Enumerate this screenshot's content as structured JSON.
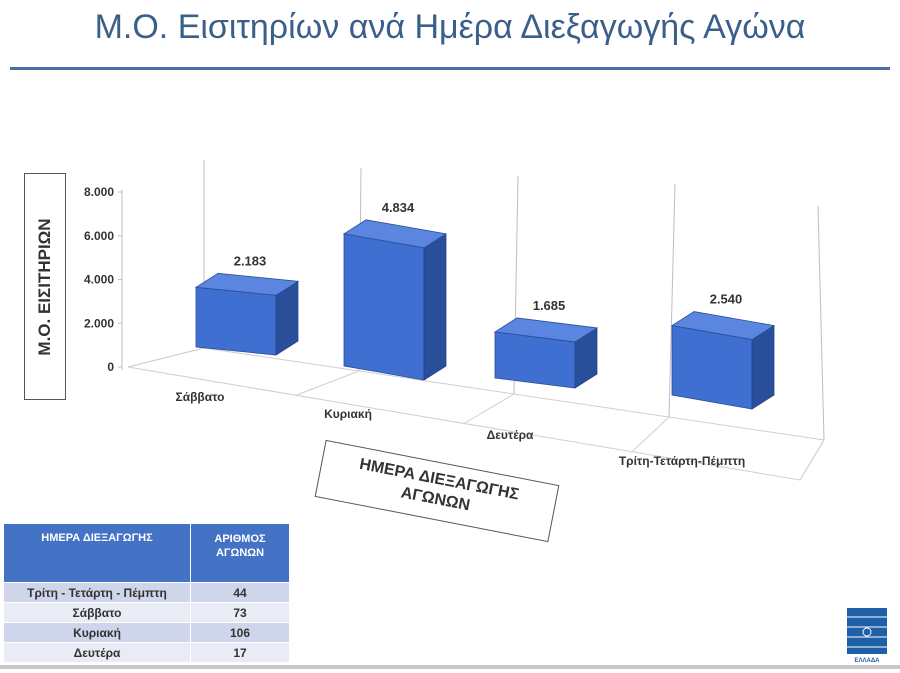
{
  "title": "Μ.Ο. Εισιτηρίων ανά Ημέρα Διεξαγωγής Αγώνα",
  "chart_data": {
    "type": "bar",
    "categories": [
      "Σάββατο",
      "Κυριακή",
      "Δευτέρα",
      "Τρίτη-Τετάρτη-Πέμπτη"
    ],
    "values": [
      2183,
      4834,
      1685,
      2540
    ],
    "value_labels": [
      "2.183",
      "4.834",
      "1.685",
      "2.540"
    ],
    "ylim": [
      0,
      8000
    ],
    "yticks": [
      0,
      2000,
      4000,
      6000,
      8000
    ],
    "ytick_labels": [
      "0",
      "2.000",
      "4.000",
      "6.000",
      "8.000"
    ],
    "ylabel": "Μ.Ο. ΕΙΣΙΤΗΡΙΩΝ",
    "xlabel": "ΗΜΕΡΑ ΔΙΕΞΑΓΩΓΗΣ ΑΓΩΝΩΝ",
    "style": "3d",
    "bar_color": "#4472c4",
    "grid": true
  },
  "table": {
    "headers": [
      "ΗΜΕΡΑ ΔΙΕΞΑΓΩΓΗΣ",
      "ΑΡΙΘΜΟΣ ΑΓΩΝΩΝ"
    ],
    "rows": [
      [
        "Τρίτη - Τετάρτη  - Πέμπτη",
        "44"
      ],
      [
        "Σάββατο",
        "73"
      ],
      [
        "Κυριακή",
        "106"
      ],
      [
        "Δευτέρα",
        "17"
      ]
    ]
  },
  "logo": {
    "text": "SUPER LEAGUE ΕΛΛΑΔΑ",
    "icon": "super-league-logo-icon"
  },
  "colors": {
    "accent": "#4472c4",
    "title": "#3a5f8a",
    "header_bg": "#4472c4"
  }
}
